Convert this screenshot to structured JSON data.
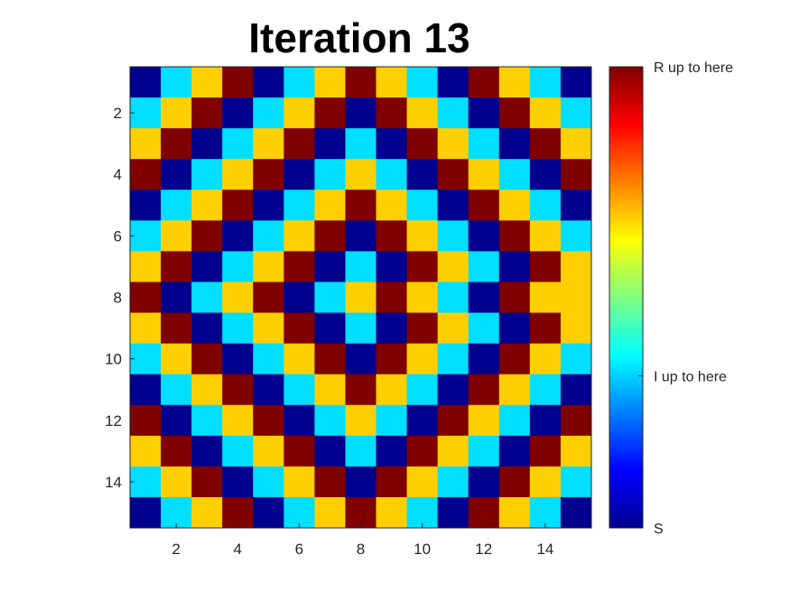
{
  "chart_data": {
    "type": "heatmap",
    "title": "Iteration 13",
    "xlabel": "",
    "ylabel": "",
    "x_ticks": [
      2,
      4,
      6,
      8,
      10,
      12,
      14
    ],
    "y_ticks": [
      2,
      4,
      6,
      8,
      10,
      12,
      14
    ],
    "x_range": [
      0.5,
      15.5
    ],
    "y_range": [
      0.5,
      15.5
    ],
    "y_direction": "reversed",
    "colormap": "jet",
    "category_colors": {
      "0": "#00008f",
      "1": "#00dfff",
      "2": "#ffcf00",
      "3": "#800000"
    },
    "matrix": [
      [
        0,
        1,
        2,
        3,
        0,
        1,
        2,
        3,
        2,
        1,
        0,
        3,
        2,
        1,
        0
      ],
      [
        1,
        2,
        3,
        0,
        1,
        2,
        3,
        0,
        3,
        2,
        1,
        0,
        3,
        2,
        1
      ],
      [
        2,
        3,
        0,
        1,
        2,
        3,
        0,
        1,
        0,
        3,
        2,
        1,
        0,
        3,
        2
      ],
      [
        3,
        0,
        1,
        2,
        3,
        0,
        1,
        2,
        1,
        0,
        3,
        2,
        1,
        0,
        3
      ],
      [
        0,
        1,
        2,
        3,
        0,
        1,
        2,
        3,
        2,
        1,
        0,
        3,
        2,
        1,
        0
      ],
      [
        1,
        2,
        3,
        0,
        1,
        2,
        3,
        0,
        3,
        2,
        1,
        0,
        3,
        2,
        1
      ],
      [
        2,
        3,
        0,
        1,
        2,
        3,
        0,
        1,
        0,
        3,
        2,
        1,
        0,
        3,
        2
      ],
      [
        3,
        0,
        1,
        2,
        3,
        0,
        1,
        2,
        3,
        2,
        1,
        0,
        3,
        2,
        2
      ],
      [
        2,
        3,
        0,
        1,
        2,
        3,
        0,
        1,
        0,
        3,
        2,
        1,
        0,
        3,
        2
      ],
      [
        1,
        2,
        3,
        0,
        1,
        2,
        3,
        0,
        3,
        2,
        1,
        0,
        3,
        2,
        1
      ],
      [
        0,
        1,
        2,
        3,
        0,
        1,
        2,
        3,
        2,
        1,
        0,
        3,
        2,
        1,
        0
      ],
      [
        3,
        0,
        1,
        2,
        3,
        0,
        1,
        2,
        1,
        0,
        3,
        2,
        1,
        0,
        3
      ],
      [
        2,
        3,
        0,
        1,
        2,
        3,
        0,
        1,
        0,
        3,
        2,
        1,
        0,
        3,
        2
      ],
      [
        1,
        2,
        3,
        0,
        1,
        2,
        3,
        0,
        3,
        2,
        1,
        0,
        3,
        2,
        1
      ],
      [
        0,
        1,
        2,
        3,
        0,
        1,
        2,
        3,
        2,
        1,
        0,
        3,
        2,
        1,
        0
      ]
    ],
    "colorbar": {
      "ticks": [
        {
          "label": "R up to here",
          "value": 1.0
        },
        {
          "label": "I up to here",
          "value": 0.33
        },
        {
          "label": "S",
          "value": 0.0
        }
      ]
    }
  }
}
